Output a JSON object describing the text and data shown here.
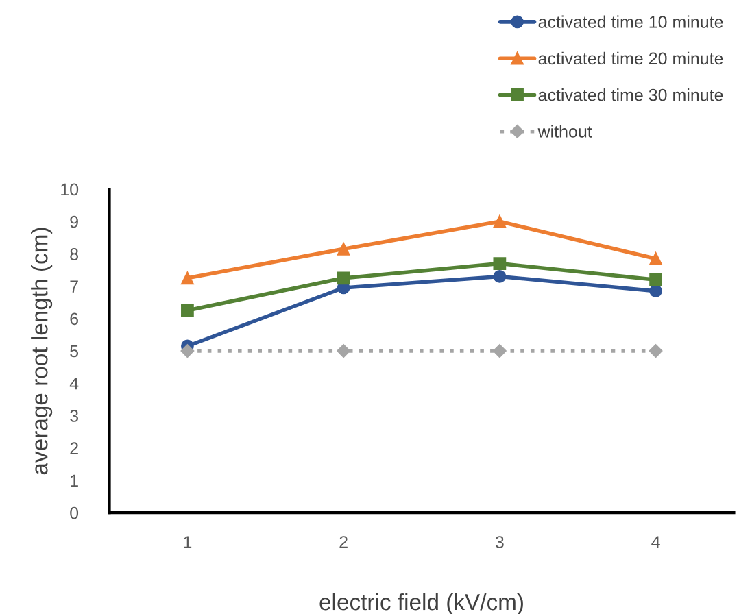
{
  "chart_data": {
    "type": "line",
    "xlabel": "electric field (kV/cm)",
    "ylabel": "average root length (cm)",
    "categories": [
      "1",
      "2",
      "3",
      "4"
    ],
    "series": [
      {
        "name": "activated time 10 minute",
        "color": "#2f5597",
        "marker": "circle",
        "line_style": "solid",
        "values": [
          5.15,
          6.95,
          7.3,
          6.85
        ]
      },
      {
        "name": "activated time 20 minute",
        "color": "#ed7d31",
        "marker": "triangle",
        "line_style": "solid",
        "values": [
          7.25,
          8.15,
          9.0,
          7.85
        ]
      },
      {
        "name": "activated time 30 minute",
        "color": "#548235",
        "marker": "square",
        "line_style": "solid",
        "values": [
          6.25,
          7.25,
          7.7,
          7.2
        ]
      },
      {
        "name": "without",
        "color": "#a5a5a5",
        "marker": "diamond",
        "line_style": "dotted",
        "values": [
          5,
          5,
          5,
          5
        ]
      }
    ],
    "ylim": [
      0,
      10
    ],
    "yticks": [
      0,
      1,
      2,
      3,
      4,
      5,
      6,
      7,
      8,
      9,
      10
    ],
    "grid": false,
    "legend": "top right"
  }
}
